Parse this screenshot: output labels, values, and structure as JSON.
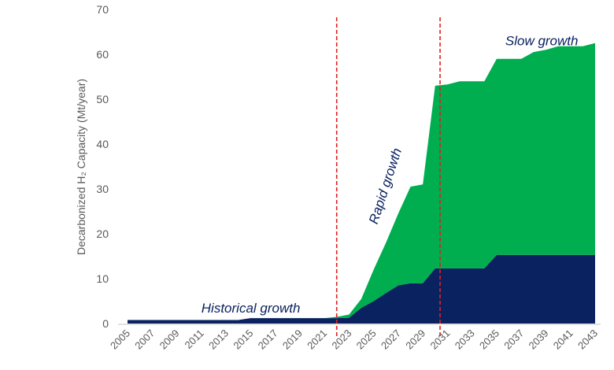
{
  "chart_data": {
    "type": "area",
    "stacked": true,
    "title": "",
    "xlabel": "",
    "ylabel": "Decarbonized H₂ Capacity (Mt/year)",
    "ylim": [
      0,
      70
    ],
    "yticks": [
      0,
      10,
      20,
      30,
      40,
      50,
      60,
      70
    ],
    "xlim": [
      2005,
      2043
    ],
    "xticks": [
      2005,
      2007,
      2009,
      2011,
      2013,
      2015,
      2017,
      2019,
      2021,
      2023,
      2025,
      2027,
      2029,
      2031,
      2033,
      2035,
      2037,
      2039,
      2041,
      2043
    ],
    "grid": false,
    "x": [
      2005,
      2006,
      2007,
      2008,
      2009,
      2010,
      2011,
      2012,
      2013,
      2014,
      2015,
      2016,
      2017,
      2018,
      2019,
      2020,
      2021,
      2022,
      2023,
      2024,
      2025,
      2026,
      2027,
      2028,
      2029,
      2030,
      2031,
      2032,
      2033,
      2034,
      2035,
      2036,
      2037,
      2038,
      2039,
      2040,
      2041,
      2042,
      2043
    ],
    "series": [
      {
        "name": "Navy series",
        "color": "#0a2260",
        "values": [
          0.8,
          0.8,
          0.8,
          0.8,
          0.8,
          0.8,
          0.8,
          0.8,
          0.8,
          0.8,
          1.2,
          1.2,
          1.2,
          1.2,
          1.2,
          1.2,
          1.2,
          1.2,
          1.3,
          3.5,
          5,
          6.8,
          8.5,
          9,
          9,
          12.3,
          12.3,
          12.3,
          12.3,
          12.3,
          15.3,
          15.3,
          15.3,
          15.3,
          15.3,
          15.3,
          15.3,
          15.3,
          15.3
        ]
      },
      {
        "name": "Green series",
        "color": "#00ad4f",
        "values": [
          0,
          0,
          0,
          0,
          0,
          0,
          0,
          0,
          0,
          0,
          0,
          0,
          0,
          0,
          0,
          0,
          0,
          0.3,
          0.7,
          2,
          7,
          11.2,
          16,
          21.5,
          22,
          40.7,
          41,
          41.7,
          41.7,
          41.7,
          43.7,
          43.7,
          43.7,
          45.2,
          45.7,
          46.5,
          46.5,
          46.5,
          47.2
        ]
      }
    ],
    "reference_lines": [
      {
        "x": 2022,
        "color": "#e02020",
        "style": "dashed"
      },
      {
        "x": 2030.4,
        "color": "#e02020",
        "style": "dashed"
      }
    ],
    "annotations": [
      {
        "text": "Historical growth",
        "x": 2011,
        "y": 2.5
      },
      {
        "text": "Rapid growth",
        "x": 2025.3,
        "y": 22
      },
      {
        "text": "Slow growth",
        "x": 2035.7,
        "y": 62
      }
    ]
  }
}
